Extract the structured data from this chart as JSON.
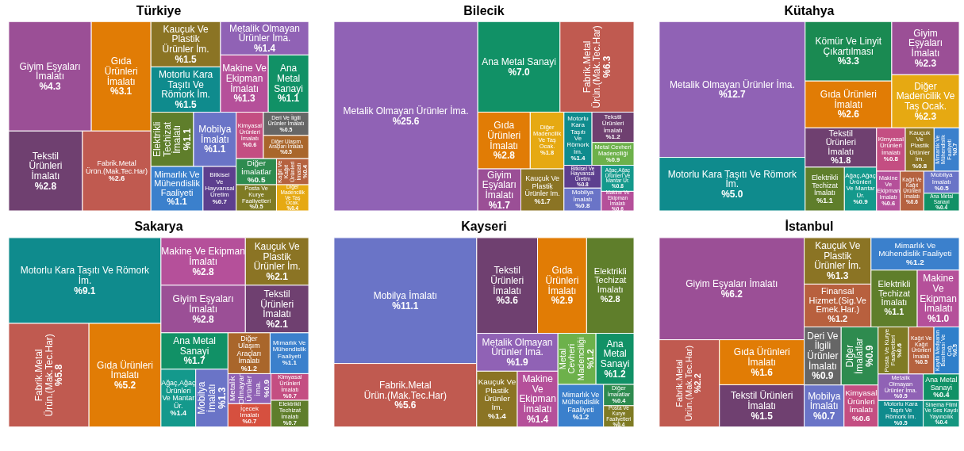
{
  "chart_data": [
    {
      "type": "other",
      "title": "Türkiye",
      "categories": [
        "Giyim Eşyaları İmalatı",
        "Gıda Ürünleri İmalatı",
        "Tekstil Ürünleri İmalatı",
        "Fabrik.Metal Ürün.(Mak.Tec.Har)",
        "Kauçuk Ve Plastik Ürünler İm.",
        "Motorlu Kara Taşıtı Ve Römork İm.",
        "Metalik Olmayan Ürünler İma.",
        "Makine Ve Ekipman İmalatı",
        "Ana Metal Sanayi",
        "Elektrikli Techizat İmalatı",
        "Mobilya İmalatı",
        "Mimarlık Ve Mühendislik Faaliyeti",
        "Bitkisel Ve Hayvansal Üretim",
        "Kimyasal Ürünleri İmalatı",
        "Deri Ve İlgili Ürünler İmalatı",
        "Diğer Ulaşım Araçları İmalatı",
        "Diğer İmalatlar",
        "Posta Ve Kurye Faaliyetleri",
        "Kağıt Ve Kağıt Ürünleri İmalatı",
        "Diğer Madencilik Ve Taş Ocak."
      ],
      "values": [
        4.3,
        3.1,
        2.8,
        2.6,
        1.5,
        1.5,
        1.4,
        1.3,
        1.1,
        1.1,
        1.1,
        1.1,
        0.7,
        0.6,
        0.5,
        0.5,
        0.5,
        0.5,
        0.4,
        0.4
      ],
      "value_labels": [
        "%4.3",
        "%3.1",
        "%2.8",
        "%2.6",
        "%1.5",
        "%1.5",
        "%1.4",
        "%1.3",
        "%1.1",
        "%1.1",
        "%1.1",
        "%1.1",
        "%0.7",
        "%0.6",
        "%0.5",
        "%0.5",
        "%0.5",
        "%0.5",
        "%0.4",
        "%0.4"
      ],
      "colors": [
        "#9b4f96",
        "#e17c05",
        "#6f4070",
        "#c05a50",
        "#8b7424",
        "#0f8b8d",
        "#9062b5",
        "#b5509a",
        "#119166",
        "#5f7e2b",
        "#6a74c7",
        "#3b80cc",
        "#5d3f8e",
        "#c44e82",
        "#666666",
        "#a9662b",
        "#2e8b4f",
        "#7f7b24",
        "#b5623f",
        "#e6a912"
      ]
    },
    {
      "type": "other",
      "title": "Bilecik",
      "categories": [
        "Metalik Olmayan Ürünler İma.",
        "Ana Metal Sanayi",
        "Fabrik.Metal Ürün.(Mak.Tec.Har)",
        "Gıda Ürünleri İmalatı",
        "Diğer Madencilik Ve Taş Ocak.",
        "Giyim Eşyaları İmalatı",
        "Kauçuk Ve Plastik Ürünler İm.",
        "Motorlu Kara Taşıtı Ve Römork İm.",
        "Tekstil Ürünleri İmalatı",
        "Metal Cevheri Madenciliği",
        "Bitkisel Ve Hayvansal Üretim",
        "Mobilya İmalatı",
        "Ağaç,Ağaç Ürünleri Ve Mantar Ür.",
        "Makine Ve Ekipman İmalatı"
      ],
      "values": [
        25.6,
        7.0,
        6.3,
        2.8,
        1.8,
        1.7,
        1.7,
        1.4,
        1.2,
        0.9,
        0.8,
        0.8,
        0.8,
        0.6
      ],
      "value_labels": [
        "%25.6",
        "%7.0",
        "%6.3",
        "%2.8",
        "%1.8",
        "%1.7",
        "%1.7",
        "%1.4",
        "%1.2",
        "%0.9",
        "%0.8",
        "%0.8",
        "%0.8",
        "%0.6"
      ],
      "colors": [
        "#9062b5",
        "#119166",
        "#c05a50",
        "#e17c05",
        "#e6a912",
        "#9b4f96",
        "#8b7424",
        "#0f8b8d",
        "#6f4070",
        "#6db14b",
        "#5d3f8e",
        "#6a74c7",
        "#14998c",
        "#b5509a"
      ]
    },
    {
      "type": "other",
      "title": "Kütahya",
      "categories": [
        "Metalik Olmayan Ürünler İma.",
        "Motorlu Kara Taşıtı Ve Römork İm.",
        "Kömür Ve Linyit Çıkartılması",
        "Gıda Ürünleri İmalatı",
        "Giyim Eşyaları İmalatı",
        "Diğer Madencilik Ve Taş Ocak.",
        "Tekstil Ürünleri İmalatı",
        "Elektrikli Techizat İmalatı",
        "Ağaç,Ağaç Ürünleri Ve Mantar Ür.",
        "Kimyasal Ürünleri İmalatı",
        "Kauçuk Ve Plastik Ürünler İm.",
        "Mimarlık Ve Mühendislik Faaliyeti",
        "Makine Ve Ekipman İmalatı",
        "Kağıt Ve Kağıt Ürünleri İmalatı",
        "Mobilya İmalatı",
        "Ana Metal Sanayi"
      ],
      "values": [
        12.7,
        5.0,
        3.3,
        2.6,
        2.3,
        2.3,
        1.8,
        1.1,
        0.9,
        0.8,
        0.8,
        0.7,
        0.6,
        0.6,
        0.5,
        0.4
      ],
      "value_labels": [
        "%12.7",
        "%5.0",
        "%3.3",
        "%2.6",
        "%2.3",
        "%2.3",
        "%1.8",
        "%1.1",
        "%0.9",
        "%0.8",
        "%0.8",
        "%0.7",
        "%0.6",
        "%0.6",
        "%0.5",
        "%0.4"
      ],
      "colors": [
        "#9062b5",
        "#0f8b8d",
        "#1a8a52",
        "#e17c05",
        "#9b4f96",
        "#e6a912",
        "#6f4070",
        "#5f7e2b",
        "#14998c",
        "#c44e82",
        "#8b7424",
        "#3b80cc",
        "#b5509a",
        "#b5623f",
        "#6a74c7",
        "#119166"
      ]
    },
    {
      "type": "other",
      "title": "Sakarya",
      "categories": [
        "Motorlu Kara Taşıtı Ve Römork İm.",
        "Fabrik.Metal Ürün.(Mak.Tec.Har)",
        "Gıda Ürünleri İmalatı",
        "Makine Ve Ekipman İmalatı",
        "Giyim Eşyaları İmalatı",
        "Kauçuk Ve Plastik Ürünler İm.",
        "Tekstil Ürünleri İmalatı",
        "Ana Metal Sanayi",
        "Ağaç,Ağaç Ürünleri Ve Mantar Ür.",
        "Mobilya İmalatı",
        "Diğer Ulaşım Araçları İmalatı",
        "Mimarlık Ve Mühendislik Faaliyeti",
        "Metalik Olmayan Ürünler İma.",
        "İçecek İmalatı",
        "Kimyasal Ürünleri İmalatı",
        "Elektrikli Techizat İmalatı"
      ],
      "values": [
        9.1,
        5.8,
        5.2,
        2.8,
        2.8,
        2.1,
        2.1,
        1.7,
        1.4,
        1.3,
        1.2,
        1.1,
        0.9,
        0.7,
        0.7,
        0.7
      ],
      "value_labels": [
        "%9.1",
        "%5.8",
        "%5.2",
        "%2.8",
        "%2.8",
        "%2.1",
        "%2.1",
        "%1.7",
        "%1.4",
        "%1.3",
        "%1.2",
        "%1.1",
        "%0.9",
        "%0.7",
        "%0.7",
        "%0.7"
      ],
      "colors": [
        "#0f8b8d",
        "#c05a50",
        "#e17c05",
        "#b5509a",
        "#9b4f96",
        "#8b7424",
        "#6f4070",
        "#119166",
        "#14998c",
        "#6a74c7",
        "#a9662b",
        "#3b80cc",
        "#9062b5",
        "#d6503f",
        "#c44e82",
        "#5f7e2b"
      ]
    },
    {
      "type": "other",
      "title": "Kayseri",
      "categories": [
        "Mobilya İmalatı",
        "Fabrik.Metal Ürün.(Mak.Tec.Har)",
        "Tekstil Ürünleri İmalatı",
        "Gıda Ürünleri İmalatı",
        "Elektrikli Techizat İmalatı",
        "Metalik Olmayan Ürünler İma.",
        "Kauçuk Ve Plastik Ürünler İm.",
        "Makine Ve Ekipman İmalatı",
        "Metal Cevheri Madenciliği",
        "Ana Metal Sanayi",
        "Mimarlık Ve Mühendislik Faaliyeti",
        "Diğer İmalatlar",
        "Posta Ve Kurye Faaliyetleri"
      ],
      "values": [
        11.1,
        5.6,
        3.6,
        2.9,
        2.8,
        1.9,
        1.4,
        1.4,
        1.2,
        1.2,
        1.2,
        0.4,
        0.4
      ],
      "value_labels": [
        "%11.1",
        "%5.6",
        "%3.6",
        "%2.9",
        "%2.8",
        "%1.9",
        "%1.4",
        "%1.4",
        "%1.2",
        "%1.2",
        "%1.2",
        "%0.4",
        "%0.4"
      ],
      "colors": [
        "#6a74c7",
        "#c05a50",
        "#6f4070",
        "#e17c05",
        "#5f7e2b",
        "#9062b5",
        "#8b7424",
        "#b5509a",
        "#6db14b",
        "#119166",
        "#3b80cc",
        "#2e8b4f",
        "#7f7b24"
      ]
    },
    {
      "type": "other",
      "title": "İstanbul",
      "categories": [
        "Giyim Eşyaları İmalatı",
        "Fabrik.Metal Ürün.(Mak.Tec.Har)",
        "Gıda Ürünleri İmalatı",
        "Tekstil Ürünleri İmalatı",
        "Kauçuk Ve Plastik Ürünler İm.",
        "Finansal Hizmet.(Sig.Ve Emek.Har.)",
        "Mimarlık Ve Mühendislik Faaliyeti",
        "Elektrikli Techizat İmalatı",
        "Makine Ve Ekipman İmalatı",
        "Deri Ve İlgili Ürünler İmalatı",
        "Diğer İmalatlar",
        "Mobilya İmalatı",
        "Kimyasal Ürünleri İmalatı",
        "Posta Ve Kurye Faaliyetleri",
        "Kağıt Ve Kağıt Ürünleri İmalatı",
        "Kayıtlı Medyanın Basılması Ve Çoğ.",
        "Metalik Olmayan Ürünler İma.",
        "Motorlu Kara Taşıtı Ve Römork İm.",
        "Ana Metal Sanayi",
        "Sinema Filmi Ve Ses Kaydı Yayıncılık"
      ],
      "values": [
        6.2,
        2.2,
        1.6,
        1.5,
        1.3,
        1.2,
        1.2,
        1.1,
        1.0,
        0.9,
        0.9,
        0.7,
        0.6,
        0.6,
        0.5,
        0.5,
        0.5,
        0.5,
        0.4,
        0.4
      ],
      "value_labels": [
        "%6.2",
        "%2.2",
        "%1.6",
        "%1.5",
        "%1.3",
        "%1.2",
        "%1.2",
        "%1.1",
        "%1.0",
        "%0.9",
        "%0.9",
        "%0.7",
        "%0.6",
        "%0.6",
        "%0.5",
        "%0.5",
        "%0.5",
        "%0.5",
        "%0.4",
        "%0.4"
      ],
      "colors": [
        "#9b4f96",
        "#c05a50",
        "#e17c05",
        "#6f4070",
        "#8b7424",
        "#b8603e",
        "#3b80cc",
        "#5f7e2b",
        "#b5509a",
        "#666666",
        "#2e8b4f",
        "#6a74c7",
        "#c44e82",
        "#7f7b24",
        "#b5623f",
        "#2f7fca",
        "#9062b5",
        "#0f8b8d",
        "#119166",
        "#159680"
      ]
    }
  ]
}
